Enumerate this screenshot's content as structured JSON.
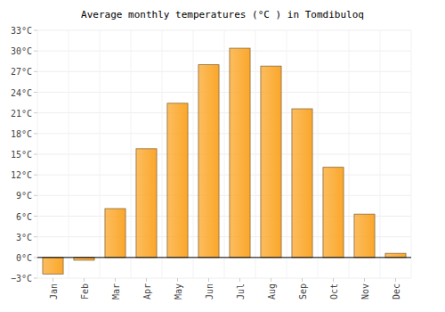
{
  "chart_data": {
    "type": "bar",
    "title": "Average monthly temperatures (°C ) in Tomdibuloq",
    "categories": [
      "Jan",
      "Feb",
      "Mar",
      "Apr",
      "May",
      "Jun",
      "Jul",
      "Aug",
      "Sep",
      "Oct",
      "Nov",
      "Dec"
    ],
    "values": [
      -2.4,
      -0.4,
      7.1,
      15.8,
      22.4,
      28.0,
      30.4,
      27.8,
      21.6,
      13.1,
      6.3,
      0.6
    ],
    "color": "#fba72a",
    "ylim": [
      -3,
      33
    ],
    "yticks": [
      {
        "value": -3,
        "label": "−3°C"
      },
      {
        "value": 0,
        "label": "0°C"
      },
      {
        "value": 3,
        "label": "3°C"
      },
      {
        "value": 6,
        "label": "6°C"
      },
      {
        "value": 9,
        "label": "9°C"
      },
      {
        "value": 12,
        "label": "12°C"
      },
      {
        "value": 15,
        "label": "15°C"
      },
      {
        "value": 18,
        "label": "18°C"
      },
      {
        "value": 21,
        "label": "21°C"
      },
      {
        "value": 24,
        "label": "24°C"
      },
      {
        "value": 27,
        "label": "27°C"
      },
      {
        "value": 30,
        "label": "30°C"
      },
      {
        "value": 33,
        "label": "33°C"
      }
    ],
    "grid": true
  }
}
